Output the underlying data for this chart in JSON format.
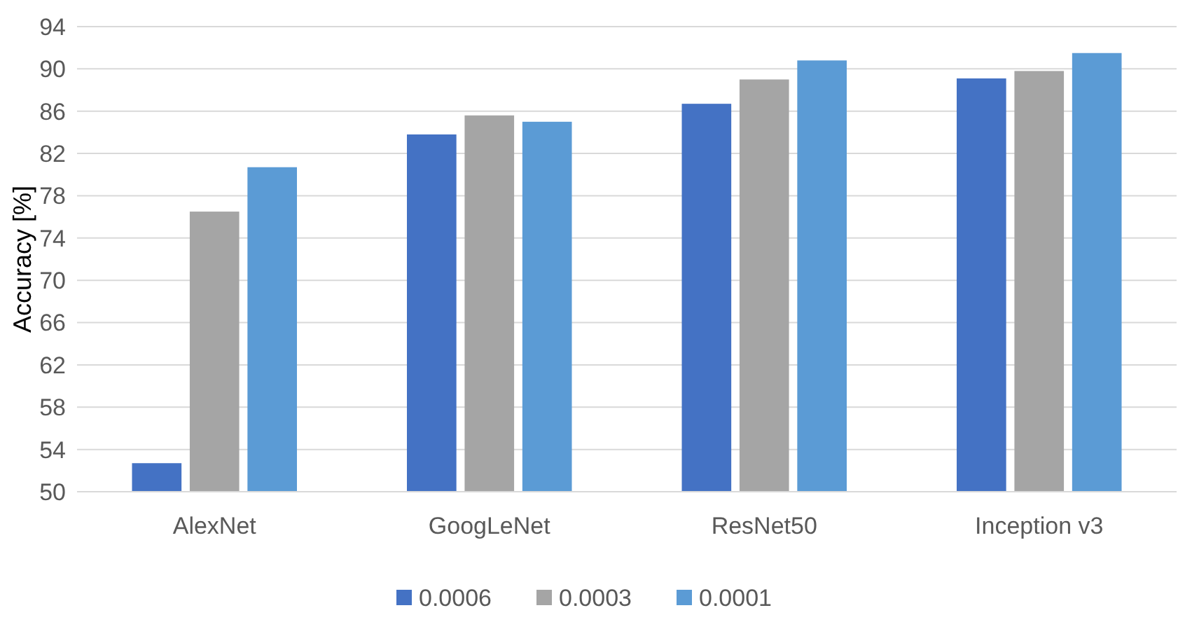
{
  "chart_data": {
    "type": "bar",
    "ylabel": "Accuracy [%]",
    "categories": [
      "AlexNet",
      "GoogLeNet",
      "ResNet50",
      "Inception v3"
    ],
    "series": [
      {
        "name": "0.0006",
        "color": "#4472c4",
        "values": [
          52.7,
          83.8,
          86.7,
          89.1
        ]
      },
      {
        "name": "0.0003",
        "color": "#a5a5a5",
        "values": [
          76.5,
          85.6,
          89.0,
          89.8
        ]
      },
      {
        "name": "0.0001",
        "color": "#5b9bd5",
        "values": [
          80.7,
          85.0,
          90.8,
          91.5
        ]
      }
    ],
    "ylim": [
      50,
      94
    ],
    "yticks": [
      50,
      54,
      58,
      62,
      66,
      70,
      74,
      78,
      82,
      86,
      90,
      94
    ],
    "grid": "y",
    "legend": "bottom"
  }
}
